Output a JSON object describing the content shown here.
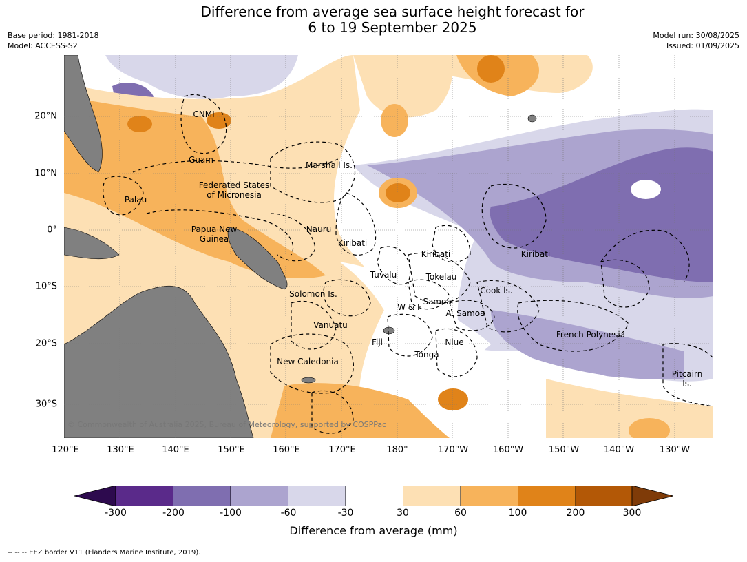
{
  "title": {
    "line1": "Difference from average sea surface height forecast for",
    "line2": "6 to 19 September 2025"
  },
  "meta": {
    "base_period": "Base period: 1981-2018",
    "model": "Model: ACCESS-S2",
    "model_run": "Model run: 30/08/2025",
    "issued": "Issued: 01/09/2025"
  },
  "lat_labels": [
    "20°N",
    "10°N",
    "0°",
    "10°S",
    "20°S",
    "30°S"
  ],
  "lon_labels": [
    "120°E",
    "130°E",
    "140°E",
    "150°E",
    "160°E",
    "170°E",
    "180°",
    "170°W",
    "160°W",
    "150°W",
    "140°W",
    "130°W"
  ],
  "regions": [
    {
      "name": "CNMI"
    },
    {
      "name": "Guam"
    },
    {
      "name": "Marshall Is."
    },
    {
      "name": "Federated States\nof Micronesia"
    },
    {
      "name": "Palau"
    },
    {
      "name": "Papua New\nGuinea"
    },
    {
      "name": "Nauru"
    },
    {
      "name": "Kiribati"
    },
    {
      "name": "Kiribati"
    },
    {
      "name": "Kiribati"
    },
    {
      "name": "Tuvalu"
    },
    {
      "name": "Tokelau"
    },
    {
      "name": "Solomon Is."
    },
    {
      "name": "Samoa"
    },
    {
      "name": "W & F"
    },
    {
      "name": "A. Samoa"
    },
    {
      "name": "Cook Is."
    },
    {
      "name": "Vanuatu"
    },
    {
      "name": "Fiji"
    },
    {
      "name": "Niue"
    },
    {
      "name": "French Polynesia"
    },
    {
      "name": "Tonga"
    },
    {
      "name": "New Caledonia"
    },
    {
      "name": "Pitcairn\nIs."
    }
  ],
  "copyright": "© Commonwealth of Australia 2025, Bureau of Meteorology, supported by COSPPac",
  "colorbar": {
    "ticks": [
      "-300",
      "-200",
      "-100",
      "-60",
      "-30",
      "30",
      "60",
      "100",
      "200",
      "300"
    ],
    "colors": [
      "#2d0a4e",
      "#5a2a8a",
      "#7f6eb0",
      "#aca4cf",
      "#d8d7ea",
      "#ffffff",
      "#fde0b4",
      "#f7b35b",
      "#e08319",
      "#b35806",
      "#7f3b08"
    ],
    "title": "Difference from average (mm)"
  },
  "footnote": "-- -- -- EEZ border V11 (Flanders Marine Institute, 2019)."
}
